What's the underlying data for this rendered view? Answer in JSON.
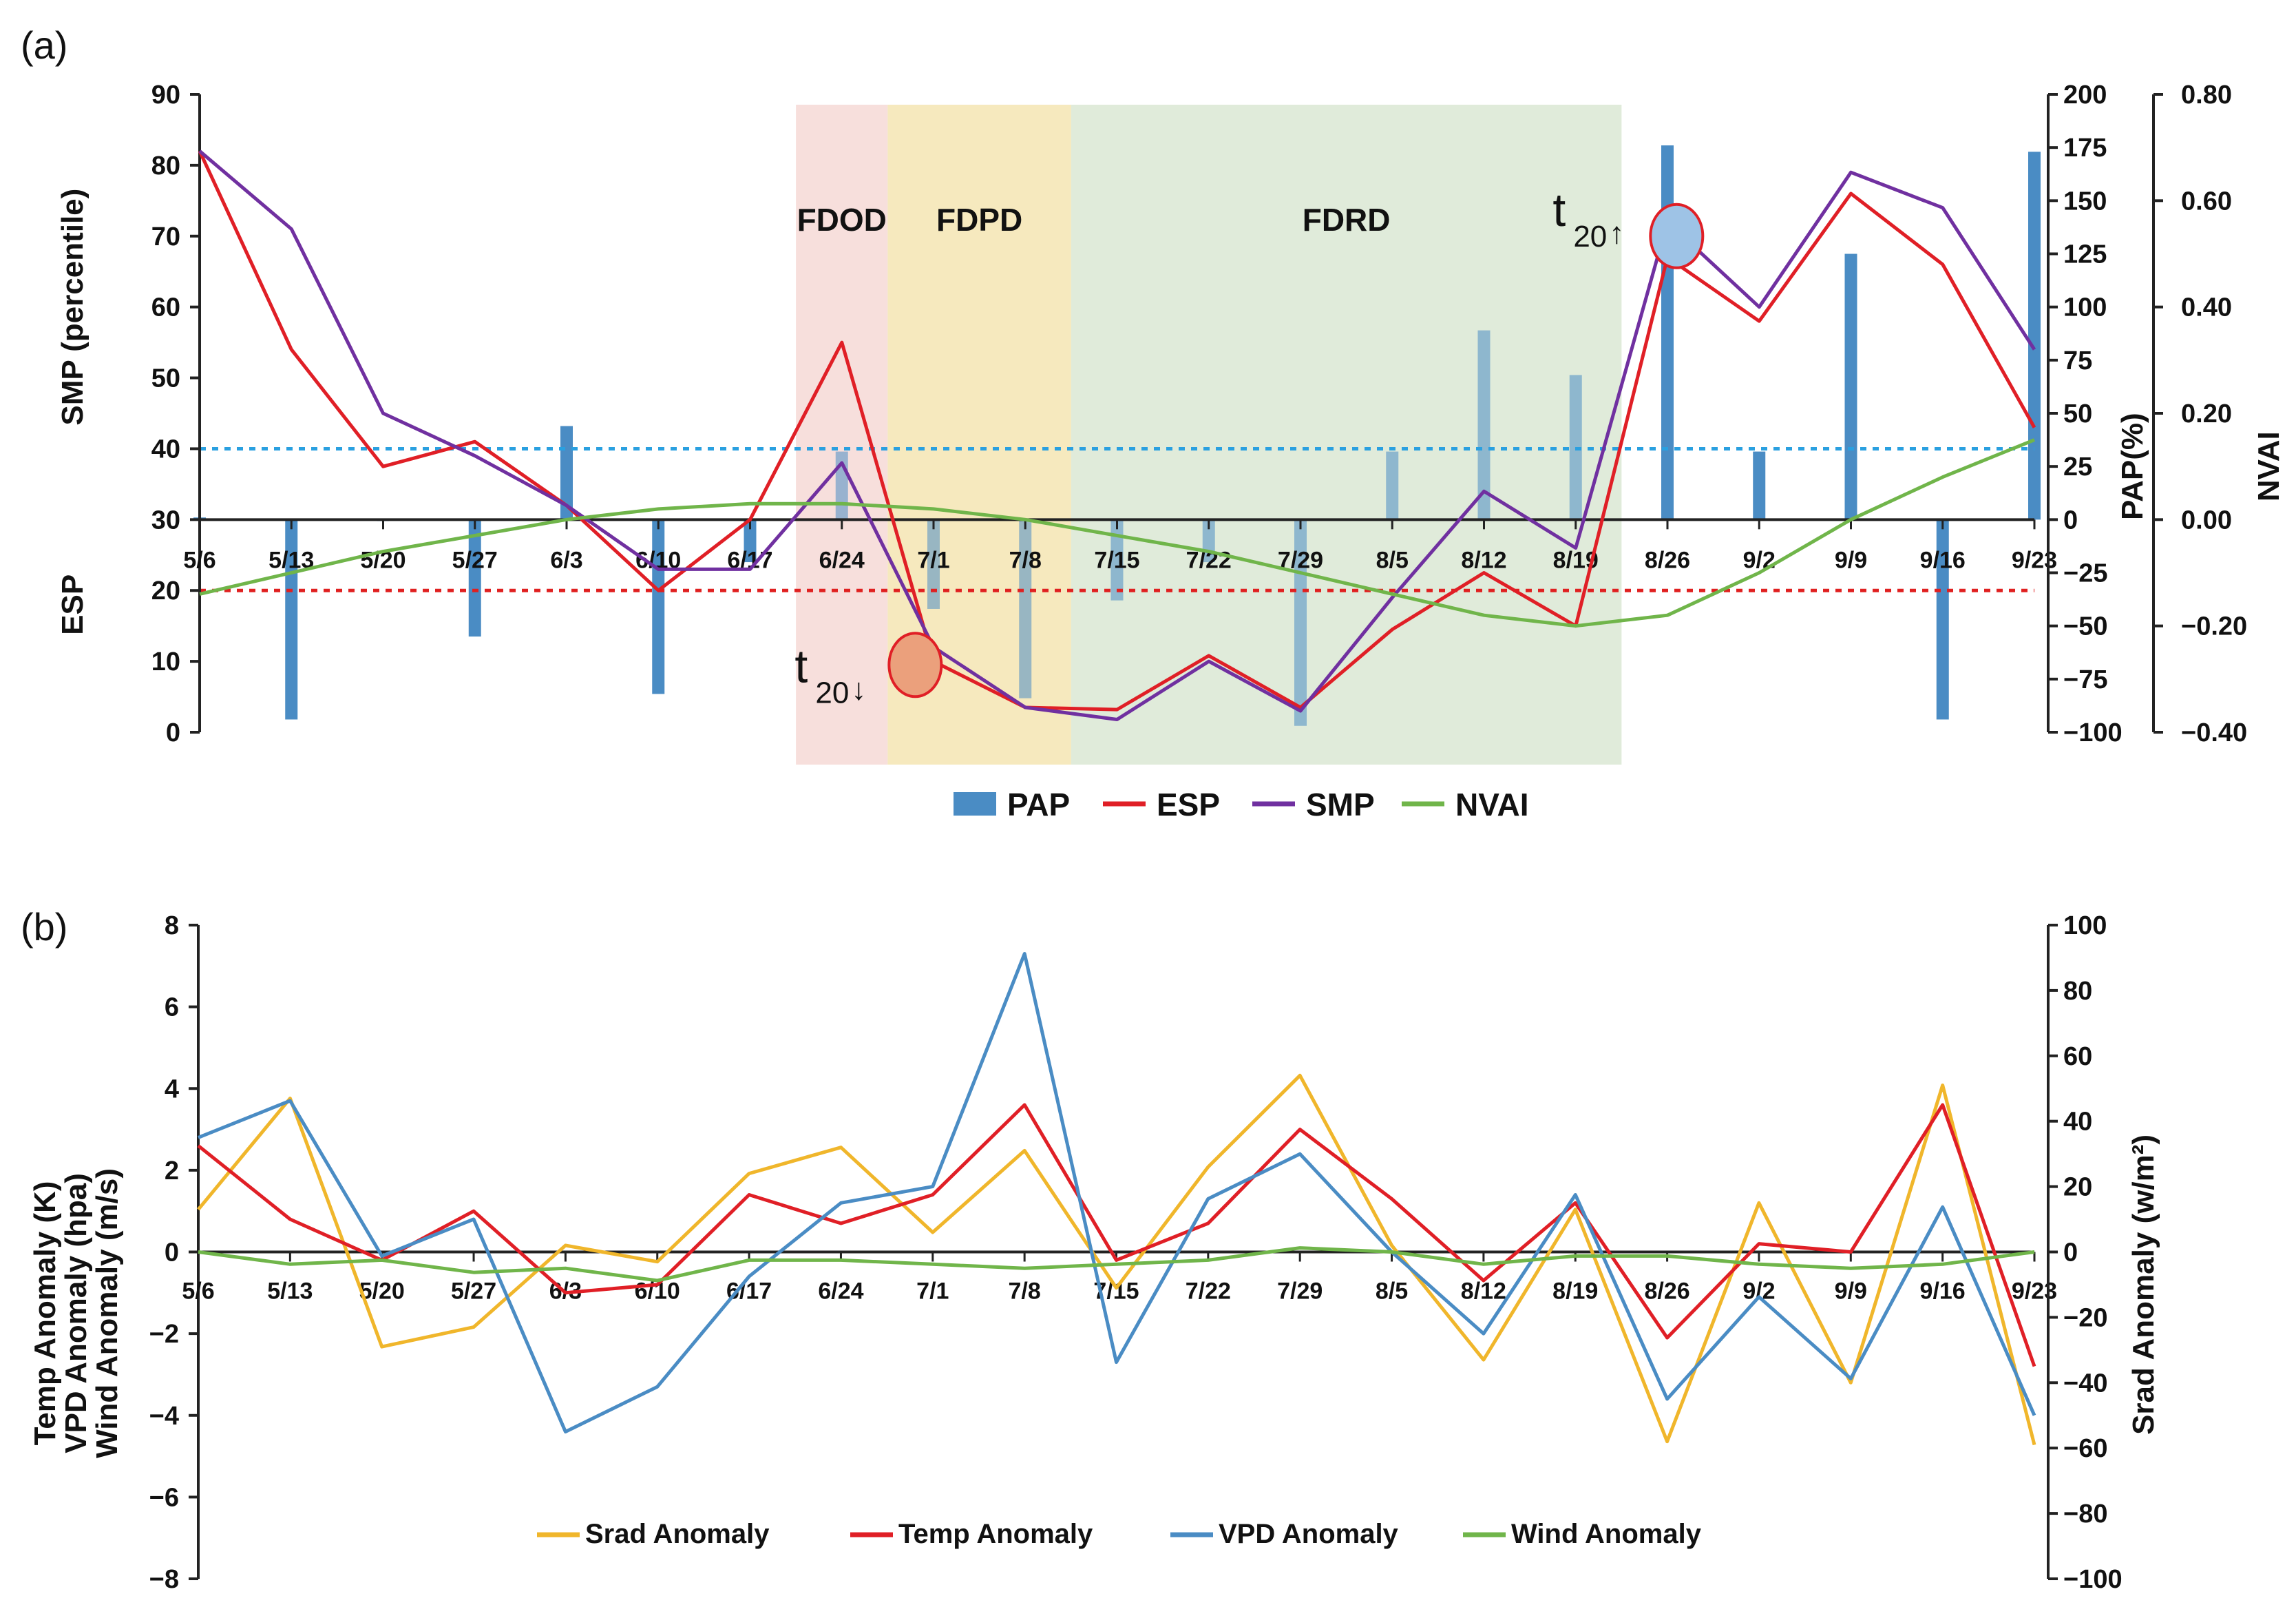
{
  "figure": {
    "panel_a_label": "(a)",
    "panel_b_label": "(b)",
    "phases": [
      {
        "label": "FDOD",
        "start": 6.5,
        "end": 7.5,
        "color": "#f6d9d6"
      },
      {
        "label": "FDPD",
        "start": 7.5,
        "end": 9.5,
        "color": "#f5e5b3"
      },
      {
        "label": "FDRD",
        "start": 9.5,
        "end": 15.5,
        "color": "#dbe7d3"
      }
    ],
    "markers": [
      {
        "label": "t",
        "sub": "20",
        "arrow": "↓",
        "x": 7.8,
        "y": 9.5,
        "color": "#eba07c"
      },
      {
        "label": "t",
        "sub": "20",
        "arrow": "↑",
        "x": 16.1,
        "y": 70,
        "color": "#9ec3e6"
      }
    ],
    "thresholds": [
      {
        "y": 40,
        "color": "#2aa0e0"
      },
      {
        "y": 20,
        "color": "#e02020"
      }
    ]
  },
  "chart_data": [
    {
      "type": "line",
      "categories": [
        "5/6",
        "5/13",
        "5/20",
        "5/27",
        "6/3",
        "6/10",
        "6/17",
        "6/24",
        "7/1",
        "7/8",
        "7/15",
        "7/22",
        "7/29",
        "8/5",
        "8/12",
        "8/19",
        "8/26",
        "9/2",
        "9/9",
        "9/16",
        "9/23"
      ],
      "ylabel_left_top": "SMP (percentile)",
      "ylabel_left_bottom": "ESP",
      "ylabel_right_1": "PAP(%)",
      "ylabel_right_2": "NVAI",
      "ylim_left": [
        0,
        90
      ],
      "yticks_left": [
        "0",
        "10",
        "20",
        "30",
        "40",
        "50",
        "60",
        "70",
        "80",
        "90"
      ],
      "ylim_pap": [
        -100,
        200
      ],
      "yticks_pap": [
        "−100",
        "−75",
        "−50",
        "−25",
        "0",
        "25",
        "50",
        "75",
        "100",
        "125",
        "150",
        "175",
        "200"
      ],
      "ylim_nvai": [
        -0.4,
        0.8
      ],
      "yticks_nvai": [
        "−0.40",
        "−0.20",
        "0.00",
        "0.20",
        "0.40",
        "0.60",
        "0.80"
      ],
      "series": [
        {
          "name": "PAP",
          "kind": "bar",
          "axis": "pap",
          "color": "#4a8cc4",
          "values": [
            1,
            -94,
            0,
            -55,
            44,
            -82,
            -20,
            32,
            -42,
            -84,
            -38,
            -20,
            -97,
            32,
            89,
            68,
            176,
            32,
            125,
            -94,
            173
          ]
        },
        {
          "name": "ESP",
          "kind": "line",
          "axis": "left",
          "color": "#e01f26",
          "values": [
            82,
            54,
            37.5,
            41,
            32,
            20,
            30,
            55,
            10,
            3.5,
            3.2,
            10.8,
            3.5,
            14.5,
            22.5,
            15,
            67,
            58,
            76,
            66,
            43
          ]
        },
        {
          "name": "SMP",
          "kind": "line",
          "axis": "left",
          "color": "#7030a0",
          "values": [
            82,
            71,
            45,
            39,
            32,
            23,
            23,
            38,
            12,
            3.5,
            1.8,
            10,
            3,
            19,
            34,
            26,
            72,
            60,
            79,
            74,
            54
          ]
        },
        {
          "name": "NVAI",
          "kind": "line",
          "axis": "nvai",
          "color": "#70b54a",
          "values": [
            -0.14,
            -0.1,
            -0.06,
            -0.03,
            0.0,
            0.02,
            0.03,
            0.03,
            0.02,
            0.0,
            -0.03,
            -0.06,
            -0.1,
            -0.14,
            -0.18,
            -0.2,
            -0.18,
            -0.1,
            0.0,
            0.08,
            0.15
          ]
        }
      ]
    },
    {
      "type": "line",
      "categories": [
        "5/6",
        "5/13",
        "5/20",
        "5/27",
        "6/3",
        "6/10",
        "6/17",
        "6/24",
        "7/1",
        "7/8",
        "7/15",
        "7/22",
        "7/29",
        "8/5",
        "8/12",
        "8/19",
        "8/26",
        "9/2",
        "9/9",
        "9/16",
        "9/23"
      ],
      "ylabel_left": [
        "Temp Anomaly (K)",
        "VPD Anomaly (hpa)",
        "Wind Anomaly (m/s)"
      ],
      "ylabel_right": "Srad Anomaly (w/m²)",
      "ylim_left": [
        -8,
        8
      ],
      "yticks_left": [
        "−8",
        "−6",
        "−4",
        "−2",
        "0",
        "2",
        "4",
        "6",
        "8"
      ],
      "ylim_right": [
        -100,
        100
      ],
      "yticks_right": [
        "−100",
        "−80",
        "−60",
        "−40",
        "−20",
        "0",
        "20",
        "40",
        "60",
        "80",
        "100"
      ],
      "series": [
        {
          "name": "Srad Anomaly",
          "axis": "right",
          "color": "#f0b62b",
          "values": [
            13,
            47,
            -29,
            -23,
            2,
            -3,
            24,
            32,
            6,
            31,
            -11,
            26,
            54,
            2,
            -33,
            13,
            -58,
            15,
            -40,
            51,
            -59
          ]
        },
        {
          "name": "Temp Anomaly",
          "axis": "left",
          "color": "#e01f26",
          "values": [
            2.6,
            0.8,
            -0.2,
            1.0,
            -1.0,
            -0.8,
            1.4,
            0.7,
            1.4,
            3.6,
            -0.2,
            0.7,
            3.0,
            1.3,
            -0.7,
            1.2,
            -2.1,
            0.2,
            0.0,
            3.6,
            -2.8
          ]
        },
        {
          "name": "VPD Anomaly",
          "axis": "left",
          "color": "#4a8cc4",
          "values": [
            2.8,
            3.7,
            -0.1,
            0.8,
            -4.4,
            -3.3,
            -0.6,
            1.2,
            1.6,
            7.3,
            -2.7,
            1.3,
            2.4,
            0.0,
            -2.0,
            1.4,
            -3.6,
            -1.1,
            -3.1,
            1.1,
            -4.0
          ]
        },
        {
          "name": "Wind Anomaly",
          "axis": "left",
          "color": "#70b54a",
          "values": [
            0.0,
            -0.3,
            -0.2,
            -0.5,
            -0.4,
            -0.7,
            -0.2,
            -0.2,
            -0.3,
            -0.4,
            -0.3,
            -0.2,
            0.1,
            0.0,
            -0.3,
            -0.1,
            -0.1,
            -0.3,
            -0.4,
            -0.3,
            0.0
          ]
        }
      ]
    }
  ]
}
